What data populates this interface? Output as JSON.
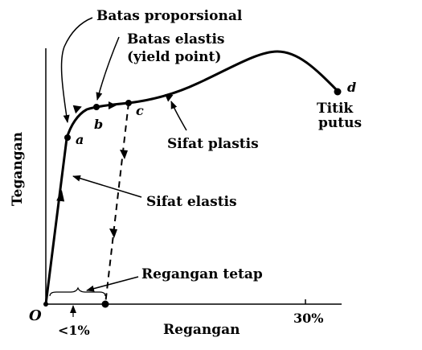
{
  "axes": {
    "y_label": "Tegangan",
    "x_label": "Regangan",
    "origin": "O",
    "tick_small": "<1%",
    "tick_large": "30%"
  },
  "points": {
    "a": "a",
    "b": "b",
    "c": "c",
    "d": "d"
  },
  "labels": {
    "proportional_limit": "Batas proporsional",
    "elastic_limit": "Batas elastis",
    "yield_point": "(yield point)",
    "breaking_point_line1": "Titik",
    "breaking_point_line2": "putus",
    "plastic": "Sifat plastis",
    "elastic": "Sifat elastis",
    "permanent_strain": "Regangan tetap"
  }
}
